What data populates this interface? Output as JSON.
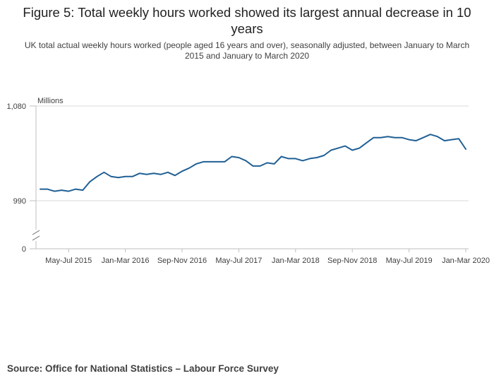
{
  "title": "Figure 5: Total weekly hours worked showed its largest annual decrease in 10 years",
  "subtitle": "UK total actual weekly hours worked (people aged 16 years and over), seasonally adjusted, between January to March 2015 and January to March 2020",
  "source": "Source: Office for National Statistics – Labour Force Survey",
  "colors": {
    "line": "#206095",
    "grid": "#d9d9d9",
    "axis": "#bfbfbf"
  },
  "chart_data": {
    "type": "line",
    "title": "Figure 5: Total weekly hours worked showed its largest annual decrease in 10 years",
    "ylabel": "Millions",
    "xlabel": "",
    "ylim": [
      0,
      1080
    ],
    "y_axis_break": [
      0,
      990
    ],
    "y_ticks": [
      {
        "value": 1080,
        "label": "1,080"
      },
      {
        "value": 990,
        "label": "990"
      },
      {
        "value": 0,
        "label": "0"
      }
    ],
    "x_tick_labels": [
      {
        "index": 4,
        "label": "May-Jul 2015"
      },
      {
        "index": 12,
        "label": "Jan-Mar 2016"
      },
      {
        "index": 20,
        "label": "Sep-Nov 2016"
      },
      {
        "index": 28,
        "label": "May-Jul 2017"
      },
      {
        "index": 36,
        "label": "Jan-Mar 2018"
      },
      {
        "index": 44,
        "label": "Sep-Nov 2018"
      },
      {
        "index": 52,
        "label": "May-Jul 2019"
      },
      {
        "index": 60,
        "label": "Jan-Mar 2020"
      }
    ],
    "series": [
      {
        "name": "Total weekly hours worked",
        "values": [
          1001,
          1001,
          999,
          1000,
          999,
          1001,
          1000,
          1008,
          1013,
          1017,
          1013,
          1012,
          1013,
          1013,
          1016,
          1015,
          1016,
          1015,
          1017,
          1014,
          1018,
          1021,
          1025,
          1027,
          1027,
          1027,
          1027,
          1032,
          1031,
          1028,
          1023,
          1023,
          1026,
          1025,
          1032,
          1030,
          1030,
          1028,
          1030,
          1031,
          1033,
          1038,
          1040,
          1042,
          1038,
          1040,
          1045,
          1050,
          1050,
          1051,
          1050,
          1050,
          1048,
          1047,
          1050,
          1053,
          1051,
          1047,
          1048,
          1049,
          1039
        ]
      }
    ]
  }
}
